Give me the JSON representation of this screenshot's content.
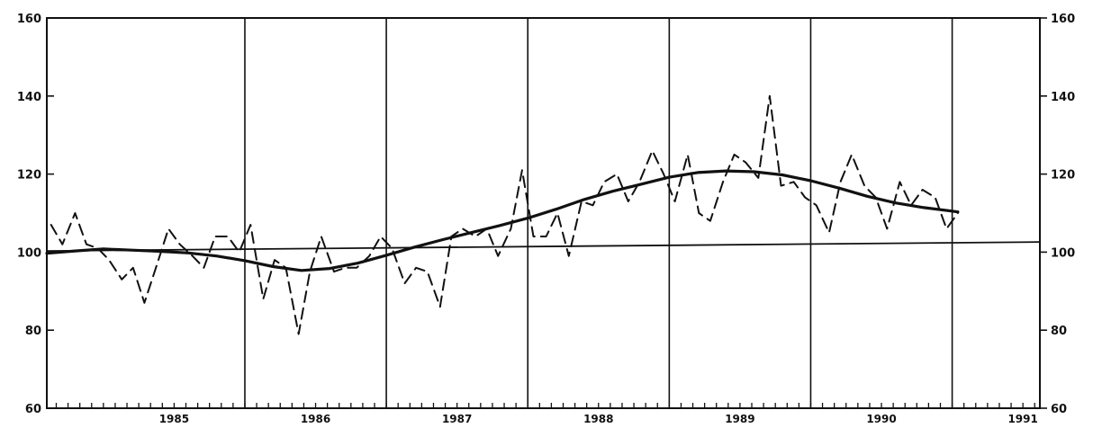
{
  "chart_data": {
    "type": "line",
    "title": "",
    "xlabel": "",
    "ylabel": "",
    "x_range": [
      1984.6,
      1991.62
    ],
    "ylim": [
      60,
      160
    ],
    "y_ticks_left": [
      60,
      80,
      100,
      120,
      140,
      160
    ],
    "y_ticks_right": [
      60,
      80,
      100,
      120,
      140,
      160
    ],
    "grid": "vertical lines at year boundaries",
    "year_labels": [
      {
        "label": "1985",
        "x": 1985.5
      },
      {
        "label": "1986",
        "x": 1986.5
      },
      {
        "label": "1987",
        "x": 1987.5
      },
      {
        "label": "1988",
        "x": 1988.5
      },
      {
        "label": "1989",
        "x": 1989.5
      },
      {
        "label": "1990",
        "x": 1990.5
      },
      {
        "label": "1991",
        "x": 1991.5
      }
    ],
    "year_boundaries": [
      1986.0,
      1987.0,
      1988.0,
      1989.0,
      1990.0,
      1991.0
    ],
    "reference_line": {
      "value": 100,
      "slope_note": "nearly flat, rising slightly to 102.6 at right"
    },
    "reference_line_points": [
      [
        1984.6,
        100.3
      ],
      [
        1991.62,
        102.6
      ]
    ],
    "series": [
      {
        "style": "dashed",
        "x": [
          1984.63,
          1984.71,
          1984.8,
          1984.88,
          1984.96,
          1985.04,
          1985.13,
          1985.21,
          1985.29,
          1985.38,
          1985.46,
          1985.54,
          1985.63,
          1985.71,
          1985.79,
          1985.88,
          1985.96,
          1986.04,
          1986.13,
          1986.21,
          1986.29,
          1986.38,
          1986.46,
          1986.54,
          1986.63,
          1986.71,
          1986.79,
          1986.88,
          1986.96,
          1987.04,
          1987.13,
          1987.21,
          1987.29,
          1987.38,
          1987.46,
          1987.54,
          1987.63,
          1987.71,
          1987.79,
          1987.88,
          1987.96,
          1988.04,
          1988.13,
          1988.21,
          1988.29,
          1988.38,
          1988.46,
          1988.54,
          1988.63,
          1988.71,
          1988.79,
          1988.88,
          1988.96,
          1989.04,
          1989.13,
          1989.21,
          1989.29,
          1989.38,
          1989.46,
          1989.54,
          1989.63,
          1989.71,
          1989.79,
          1989.88,
          1989.96,
          1990.04,
          1990.13,
          1990.21,
          1990.29,
          1990.38,
          1990.46,
          1990.54,
          1990.63,
          1990.71,
          1990.79,
          1990.88,
          1990.96,
          1991.04
        ],
        "values": [
          107,
          102,
          110,
          102,
          101,
          98,
          93,
          96,
          87,
          97,
          106,
          102,
          99,
          96,
          104,
          104,
          100,
          107,
          88,
          98,
          96,
          79,
          95,
          104,
          95,
          96,
          96,
          99,
          104,
          101,
          92,
          96,
          95,
          86,
          104,
          106,
          104,
          106,
          99,
          106,
          121,
          104,
          104,
          110,
          99,
          113,
          112,
          118,
          120,
          113,
          118,
          126,
          120,
          113,
          125,
          110,
          108,
          118,
          125,
          123,
          119,
          140,
          117,
          118,
          114,
          112,
          105,
          118,
          125,
          117,
          114,
          106,
          118,
          112,
          116,
          114,
          106,
          110
        ]
      },
      {
        "style": "solid",
        "x": [
          1984.6,
          1984.8,
          1985.0,
          1985.2,
          1985.4,
          1985.6,
          1985.8,
          1986.0,
          1986.2,
          1986.4,
          1986.6,
          1986.8,
          1987.0,
          1987.2,
          1987.4,
          1987.6,
          1987.8,
          1988.0,
          1988.2,
          1988.4,
          1988.6,
          1988.8,
          1989.0,
          1989.2,
          1989.4,
          1989.6,
          1989.8,
          1990.0,
          1990.2,
          1990.4,
          1990.6,
          1990.8,
          1991.0,
          1991.04
        ],
        "values": [
          99.7,
          100.3,
          100.8,
          100.5,
          100.2,
          99.8,
          99,
          97.8,
          96.3,
          95.3,
          95.8,
          97.2,
          99.2,
          101.3,
          103.2,
          105,
          106.8,
          108.7,
          111,
          113.5,
          115.6,
          117.4,
          119.2,
          120.4,
          120.8,
          120.6,
          119.8,
          118.3,
          116.4,
          114.3,
          112.6,
          111.4,
          110.5,
          110.3
        ]
      }
    ]
  }
}
